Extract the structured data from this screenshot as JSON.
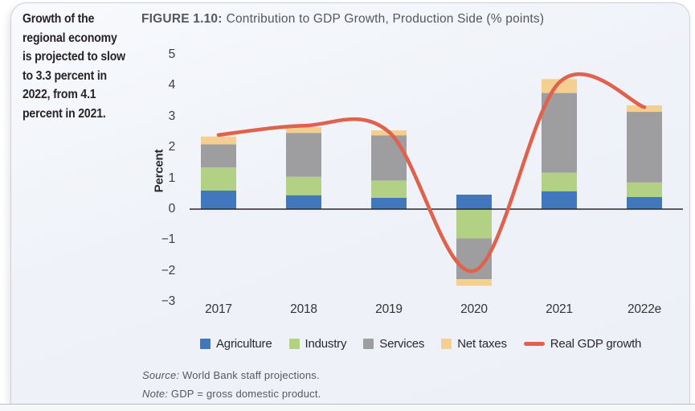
{
  "page": {
    "sidebar_lines": [
      "Growth of the",
      "regional economy",
      "is projected to slow",
      "to 3.3 percent in",
      "2022, from 4.1",
      "percent in 2021."
    ],
    "figure_label": "FIGURE 1.10:",
    "figure_title": "Contribution to GDP Growth, Production Side (% points)",
    "source_label": "Source:",
    "source_text": "World Bank staff projections.",
    "note_label": "Note:",
    "note_text": "GDP = gross domestic product."
  },
  "chart_data": {
    "type": "bar",
    "subtype": "stacked-column-with-smoothed-line",
    "title": "Contribution to GDP Growth, Production Side (% points)",
    "categories": [
      "2017",
      "2018",
      "2019",
      "2020",
      "2021",
      "2022e"
    ],
    "series": [
      {
        "name": "Agriculture",
        "color": "#4077bd",
        "values": [
          0.6,
          0.45,
          0.37,
          0.47,
          0.58,
          0.39
        ]
      },
      {
        "name": "Industry",
        "color": "#b2d184",
        "values": [
          0.75,
          0.6,
          0.55,
          -0.95,
          0.6,
          0.47
        ]
      },
      {
        "name": "Services",
        "color": "#9e9ea1",
        "values": [
          0.75,
          1.42,
          1.47,
          -1.32,
          2.58,
          2.29
        ]
      },
      {
        "name": "Net taxes",
        "color": "#f5cf90",
        "values": [
          0.25,
          0.19,
          0.16,
          -0.21,
          0.45,
          0.21
        ]
      }
    ],
    "line": {
      "name": "Real GDP growth",
      "color": "#e0624c",
      "shape": "smoothed",
      "values": [
        2.4,
        2.7,
        2.5,
        -2.0,
        4.1,
        3.3
      ]
    },
    "ylabel": "Percent",
    "y_ticks": [
      5,
      4,
      3,
      2,
      1,
      0,
      -1,
      -2,
      -3
    ],
    "ylim": [
      -3,
      5
    ],
    "grid": "off",
    "legend_position": "bottom",
    "axis_color": "#2b2828"
  }
}
